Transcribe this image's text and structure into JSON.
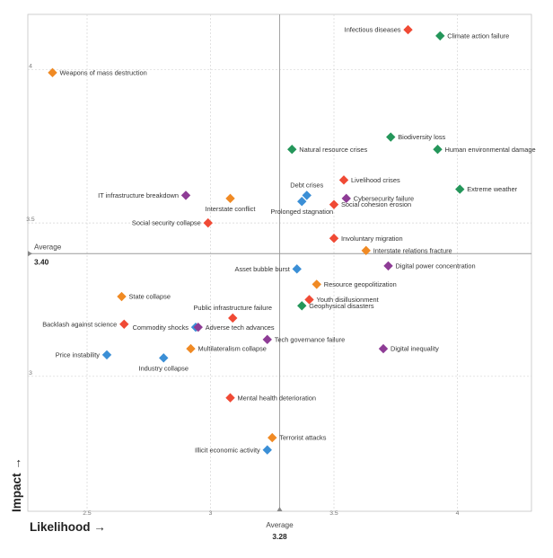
{
  "chart_data": {
    "type": "scatter",
    "xlabel": "Likelihood →",
    "ylabel": "Impact →",
    "xlim": [
      2.26,
      4.3
    ],
    "ylim": [
      2.56,
      4.18
    ],
    "x_ticks": [
      {
        "value": 2.5,
        "label": "2.5"
      },
      {
        "value": 3,
        "label": "3"
      },
      {
        "value": 3.5,
        "label": "3.5"
      },
      {
        "value": 4,
        "label": "4"
      }
    ],
    "y_ticks": [
      {
        "value": 3,
        "label": "3"
      },
      {
        "value": 3.5,
        "label": "3.5"
      },
      {
        "value": 4,
        "label": "4"
      }
    ],
    "grid": true,
    "legend": "none",
    "average_x": {
      "word": "Average",
      "value": "3.28",
      "x": 3.28
    },
    "average_y": {
      "word": "Average",
      "value": "3.40",
      "y": 3.4
    },
    "category_colors": {
      "economic": "#3b8fd6",
      "environmental": "#24965a",
      "geopolitical": "#f08a24",
      "societal": "#f04a35",
      "technological": "#8e3c96"
    },
    "points": [
      {
        "label": "Infectious diseases",
        "x": 3.8,
        "y": 4.13,
        "category": "societal",
        "label_side": "left"
      },
      {
        "label": "Climate action failure",
        "x": 3.93,
        "y": 4.11,
        "category": "environmental",
        "label_side": "right"
      },
      {
        "label": "Weapons of mass destruction",
        "x": 2.36,
        "y": 3.99,
        "category": "geopolitical",
        "label_side": "right"
      },
      {
        "label": "Biodiversity loss",
        "x": 3.73,
        "y": 3.78,
        "category": "environmental",
        "label_side": "right"
      },
      {
        "label": "Natural resource crises",
        "x": 3.33,
        "y": 3.74,
        "category": "environmental",
        "label_side": "right"
      },
      {
        "label": "Human environmental damage",
        "x": 3.92,
        "y": 3.74,
        "category": "environmental",
        "label_side": "right"
      },
      {
        "label": "Livelihood crises",
        "x": 3.54,
        "y": 3.64,
        "category": "societal",
        "label_side": "right"
      },
      {
        "label": "Extreme weather",
        "x": 4.01,
        "y": 3.61,
        "category": "environmental",
        "label_side": "right"
      },
      {
        "label": "Debt crises",
        "x": 3.39,
        "y": 3.59,
        "category": "economic",
        "label_side": "above"
      },
      {
        "label": "Prolonged stagnation",
        "x": 3.37,
        "y": 3.57,
        "category": "economic",
        "label_side": "below"
      },
      {
        "label": "Cybersecurity failure",
        "x": 3.55,
        "y": 3.58,
        "category": "technological",
        "label_side": "right"
      },
      {
        "label": "Social cohesion erosion",
        "x": 3.5,
        "y": 3.56,
        "category": "societal",
        "label_side": "right"
      },
      {
        "label": "IT infrastructure breakdown",
        "x": 2.9,
        "y": 3.59,
        "category": "technological",
        "label_side": "left"
      },
      {
        "label": "Interstate conflict",
        "x": 3.08,
        "y": 3.58,
        "category": "geopolitical",
        "label_side": "below"
      },
      {
        "label": "Social security collapse",
        "x": 2.99,
        "y": 3.5,
        "category": "societal",
        "label_side": "left"
      },
      {
        "label": "Involuntary migration",
        "x": 3.5,
        "y": 3.45,
        "category": "societal",
        "label_side": "right"
      },
      {
        "label": "Interstate relations fracture",
        "x": 3.63,
        "y": 3.41,
        "category": "geopolitical",
        "label_side": "right"
      },
      {
        "label": "Digital power concentration",
        "x": 3.72,
        "y": 3.36,
        "category": "technological",
        "label_side": "right"
      },
      {
        "label": "Asset bubble burst",
        "x": 3.35,
        "y": 3.35,
        "category": "economic",
        "label_side": "left"
      },
      {
        "label": "Resource geopolitization",
        "x": 3.43,
        "y": 3.3,
        "category": "geopolitical",
        "label_side": "right"
      },
      {
        "label": "Youth disillusionment",
        "x": 3.4,
        "y": 3.25,
        "category": "societal",
        "label_side": "right"
      },
      {
        "label": "Public infrastructure failure",
        "x": 3.09,
        "y": 3.19,
        "category": "societal",
        "label_side": "above"
      },
      {
        "label": "Geophysical disasters",
        "x": 3.37,
        "y": 3.23,
        "category": "environmental",
        "label_side": "right"
      },
      {
        "label": "State collapse",
        "x": 2.64,
        "y": 3.26,
        "category": "geopolitical",
        "label_side": "right"
      },
      {
        "label": "Backlash against science",
        "x": 2.65,
        "y": 3.17,
        "category": "societal",
        "label_side": "left"
      },
      {
        "label": "Commodity shocks",
        "x": 2.94,
        "y": 3.16,
        "category": "economic",
        "label_side": "left"
      },
      {
        "label": "Adverse tech advances",
        "x": 2.95,
        "y": 3.16,
        "category": "technological",
        "label_side": "right"
      },
      {
        "label": "Tech governance failure",
        "x": 3.23,
        "y": 3.12,
        "category": "technological",
        "label_side": "right"
      },
      {
        "label": "Digital inequality",
        "x": 3.7,
        "y": 3.09,
        "category": "technological",
        "label_side": "right"
      },
      {
        "label": "Multilateralism collapse",
        "x": 2.92,
        "y": 3.09,
        "category": "geopolitical",
        "label_side": "right"
      },
      {
        "label": "Price instability",
        "x": 2.58,
        "y": 3.07,
        "category": "economic",
        "label_side": "left"
      },
      {
        "label": "Industry collapse",
        "x": 2.81,
        "y": 3.06,
        "category": "economic",
        "label_side": "below"
      },
      {
        "label": "Mental health deterioration",
        "x": 3.08,
        "y": 2.93,
        "category": "societal",
        "label_side": "right"
      },
      {
        "label": "Terrorist attacks",
        "x": 3.25,
        "y": 2.8,
        "category": "geopolitical",
        "label_side": "right"
      },
      {
        "label": "Illicit economic activity",
        "x": 3.23,
        "y": 2.76,
        "category": "economic",
        "label_side": "left"
      }
    ]
  }
}
